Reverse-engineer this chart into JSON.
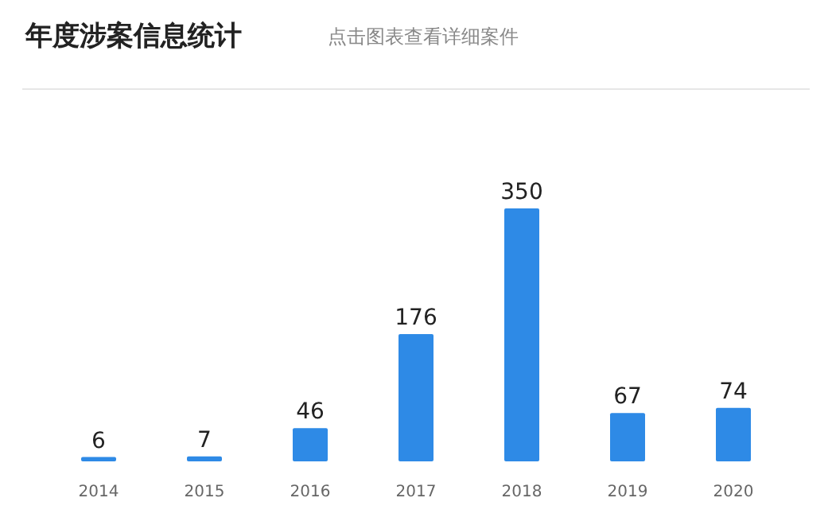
{
  "chart_data": {
    "type": "bar",
    "title": "年度涉案信息统计",
    "subtitle": "点击图表查看详细案件",
    "categories": [
      "2014",
      "2015",
      "2016",
      "2017",
      "2018",
      "2019",
      "2020"
    ],
    "values": [
      6,
      7,
      46,
      176,
      350,
      67,
      74
    ],
    "color": "#2e8ae6",
    "data_labels": true
  }
}
